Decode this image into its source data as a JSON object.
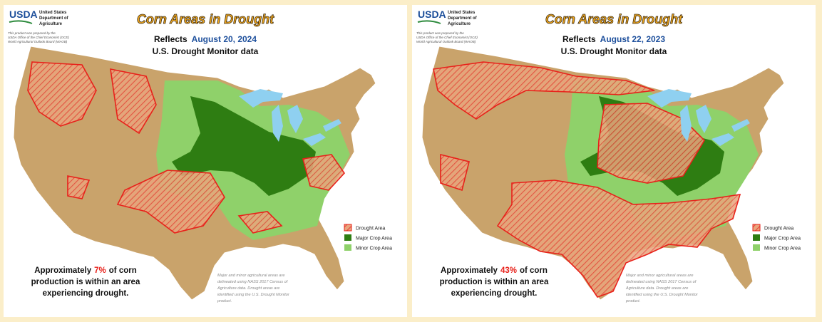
{
  "panels": [
    {
      "logo": {
        "mark": "USDA",
        "line1": "United States",
        "line2": "Department of",
        "line3": "Agriculture"
      },
      "credit": {
        "line1": "This product was prepared by the",
        "line2": "USDA Office of the Chief Economist (OCE)",
        "line3": "World Agricultural Outlook Board (WAOB)"
      },
      "title": "Corn Areas in Drought",
      "reflects": "Reflects",
      "date": "August 20, 2024",
      "subtitle": "U.S. Drought Monitor data",
      "legend": [
        "Drought Area",
        "Major Crop Area",
        "Minor Crop Area"
      ],
      "statement": {
        "prefix": "Approximately",
        "highlight": "7%",
        "rest1": "of corn",
        "line2": "production is within an area",
        "line3": "experiencing drought."
      },
      "footnote": [
        "Major and minor agricultural areas are",
        "delineated using NASS 2017 Census of",
        "Agriculture data. Drought areas are",
        "identified using the U.S. Drought Monitor",
        "product."
      ]
    },
    {
      "logo": {
        "mark": "USDA",
        "line1": "United States",
        "line2": "Department of",
        "line3": "Agriculture"
      },
      "credit": {
        "line1": "This product was prepared by the",
        "line2": "USDA Office of the Chief Economist (OCE)",
        "line3": "World Agricultural Outlook Board (WAOB)"
      },
      "title": "Corn Areas in Drought",
      "reflects": "Reflects",
      "date": "August 22, 2023",
      "subtitle": "U.S. Drought Monitor data",
      "legend": [
        "Drought Area",
        "Major Crop Area",
        "Minor Crop Area"
      ],
      "statement": {
        "prefix": "Approximately",
        "highlight": "43%",
        "rest1": "of corn",
        "line2": "production is within an area",
        "line3": "experiencing drought."
      },
      "footnote": [
        "Major and minor agricultural areas are",
        "delineated using NASS 2017 Census of",
        "Agriculture data. Drought areas are",
        "identified using the U.S. Drought Monitor",
        "product."
      ]
    }
  ]
}
